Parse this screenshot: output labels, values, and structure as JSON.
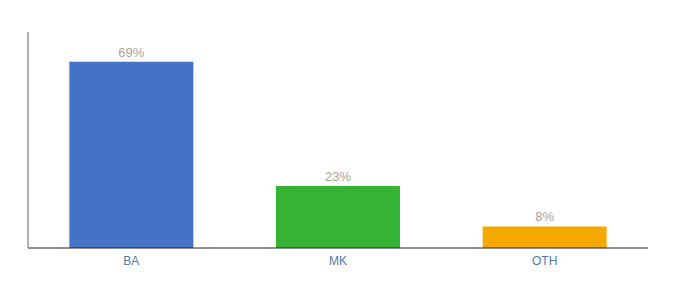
{
  "chart_data": {
    "type": "bar",
    "categories": [
      "BA",
      "MK",
      "OTH"
    ],
    "values": [
      69,
      23,
      8
    ],
    "value_labels": [
      "69%",
      "23%",
      "8%"
    ],
    "colors": [
      "#4472c4",
      "#34b334",
      "#f5a800"
    ],
    "ylim": [
      0,
      80
    ],
    "data_labels": true,
    "tick_labels": "x",
    "grid": false
  }
}
